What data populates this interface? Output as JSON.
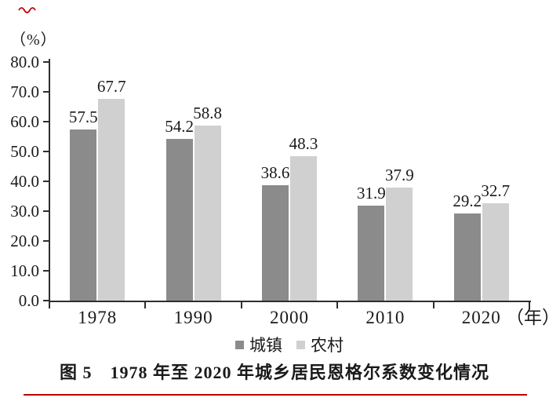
{
  "figure": {
    "unit_label": "（%）",
    "caption": "图 5　1978 年至 2020 年城乡居民恩格尔系数变化情况",
    "x_axis_suffix": "（年）"
  },
  "decorations": {
    "accent_color": "#bf0000"
  },
  "chart_data": {
    "type": "bar",
    "title": "图5 1978年至2020年城乡居民恩格尔系数变化情况",
    "unit": "%",
    "categories": [
      "1978",
      "1990",
      "2000",
      "2010",
      "2020"
    ],
    "series": [
      {
        "name": "城镇",
        "color": "#8b8b8b",
        "values": [
          57.5,
          54.2,
          38.6,
          31.9,
          29.2
        ]
      },
      {
        "name": "农村",
        "color": "#d0d0d0",
        "values": [
          67.7,
          58.8,
          48.3,
          37.9,
          32.7
        ]
      }
    ],
    "ylim": [
      0,
      80
    ],
    "ytick_step": 10,
    "ytick_labels": [
      "0.0",
      "10.0",
      "20.0",
      "30.0",
      "40.0",
      "50.0",
      "60.0",
      "70.0",
      "80.0"
    ],
    "value_labels": true,
    "grid": false,
    "legend_position": "bottom",
    "axis_color": "#2e2e2e",
    "text_color": "#1a1a1a"
  }
}
